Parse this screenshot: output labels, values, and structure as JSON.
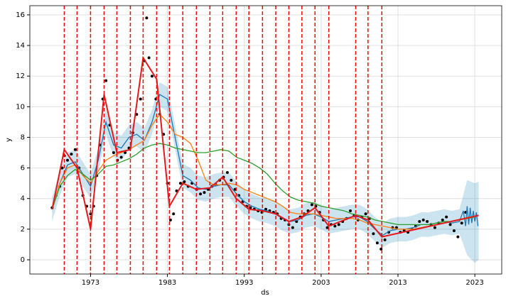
{
  "chart_data": {
    "type": "line",
    "xlabel": "ds",
    "ylabel": "y",
    "xlim": [
      1965.1,
      2026.5
    ],
    "ylim": [
      -0.93,
      16.6
    ],
    "xticks": [
      1973,
      1983,
      1993,
      2003,
      2013,
      2023
    ],
    "yticks": [
      0,
      2,
      4,
      6,
      8,
      10,
      12,
      14,
      16
    ],
    "grid": true,
    "band": {
      "color": "#0072b2",
      "x": [
        1968,
        1969,
        1970,
        1971,
        1972,
        1973,
        1974,
        1975,
        1976,
        1977,
        1978,
        1979,
        1980,
        1981,
        1982,
        1983,
        1984,
        1985,
        1986,
        1987,
        1988,
        1989,
        1990,
        1991,
        1992,
        1993,
        1994,
        1995,
        1996,
        1997,
        1998,
        1999,
        2000,
        2001,
        2002,
        2003,
        2004,
        2005,
        2006,
        2007,
        2008,
        2009,
        2010,
        2011,
        2012,
        2013,
        2014,
        2015,
        2016,
        2017,
        2018,
        2019,
        2020,
        2021,
        2022,
        2023,
        2023.5
      ],
      "upper": [
        4.1,
        5.8,
        7.0,
        7.2,
        6.4,
        5.6,
        7.3,
        9.8,
        8.3,
        8.1,
        8.8,
        9.0,
        8.6,
        9.8,
        11.6,
        11.3,
        8.8,
        6.3,
        6.0,
        5.5,
        5.4,
        5.6,
        5.7,
        5.7,
        5.1,
        4.6,
        4.3,
        4.1,
        4.0,
        3.8,
        3.5,
        3.3,
        3.4,
        3.7,
        3.8,
        3.6,
        3.3,
        3.4,
        3.5,
        3.6,
        3.6,
        3.3,
        2.8,
        2.4,
        2.7,
        2.8,
        2.8,
        2.9,
        3.1,
        3.1,
        3.2,
        3.3,
        3.2,
        3.3,
        5.2,
        5.0,
        5.1
      ],
      "lower": [
        2.5,
        4.2,
        5.4,
        5.6,
        4.8,
        4.0,
        5.7,
        8.2,
        6.7,
        6.5,
        7.2,
        7.4,
        7.0,
        8.2,
        10.0,
        9.7,
        7.2,
        4.7,
        4.4,
        3.9,
        3.8,
        4.0,
        4.1,
        4.1,
        3.5,
        3.0,
        2.7,
        2.5,
        2.4,
        2.2,
        1.9,
        1.7,
        1.8,
        2.1,
        2.2,
        2.0,
        1.7,
        1.8,
        1.9,
        2.0,
        2.0,
        1.7,
        1.2,
        0.8,
        1.1,
        1.2,
        1.2,
        1.3,
        1.5,
        1.5,
        1.6,
        1.7,
        1.6,
        1.7,
        0.3,
        -0.2,
        0.0
      ]
    },
    "points": {
      "color": "#000000",
      "x": [
        1968,
        1968.5,
        1969,
        1969.3,
        1969.6,
        1970,
        1970.5,
        1971,
        1971.5,
        1972,
        1972.5,
        1973,
        1973.4,
        1973.8,
        1974.2,
        1974.6,
        1975,
        1975.5,
        1976,
        1976.5,
        1977,
        1977.5,
        1978,
        1978.5,
        1979,
        1979.5,
        1980,
        1980.3,
        1980.6,
        1981,
        1981.5,
        1982,
        1982.5,
        1983,
        1983.4,
        1983.8,
        1984.2,
        1984.7,
        1985.2,
        1985.7,
        1986.2,
        1986.8,
        1987.3,
        1987.8,
        1988.3,
        1988.8,
        1989.3,
        1989.8,
        1990.3,
        1990.8,
        1991.3,
        1991.8,
        1992.3,
        1992.8,
        1993.3,
        1993.8,
        1994.3,
        1994.8,
        1995.3,
        1995.8,
        1996.3,
        1996.8,
        1997.3,
        1997.8,
        1998.3,
        1998.8,
        1999.3,
        1999.8,
        2000.3,
        2000.8,
        2001.3,
        2001.8,
        2002.3,
        2002.8,
        2003.3,
        2003.8,
        2004.3,
        2004.8,
        2005.3,
        2005.8,
        2006.3,
        2006.8,
        2007.3,
        2007.8,
        2008.3,
        2008.8,
        2009.3,
        2009.8,
        2010.3,
        2010.8,
        2011.3,
        2011.8,
        2012.3,
        2012.8,
        2013.3,
        2013.8,
        2014.3,
        2014.8,
        2015.3,
        2015.8,
        2016.3,
        2016.8,
        2017.3,
        2017.8,
        2018.3,
        2018.8,
        2019.3,
        2019.8,
        2020.3,
        2020.8,
        2021.3,
        2021.8
      ],
      "values": [
        3.4,
        4.2,
        4.8,
        6.0,
        6.8,
        6.5,
        6.9,
        7.2,
        6.0,
        4.2,
        3.5,
        3.0,
        3.5,
        5.5,
        7.5,
        10.5,
        11.7,
        8.8,
        7.0,
        6.5,
        6.7,
        7.0,
        7.3,
        8.3,
        9.5,
        10.5,
        13.0,
        15.8,
        13.2,
        12.0,
        10.5,
        9.5,
        8.2,
        5.0,
        2.6,
        3.0,
        4.5,
        5.0,
        5.1,
        4.8,
        5.0,
        4.6,
        4.3,
        4.4,
        4.6,
        4.8,
        4.9,
        5.2,
        5.4,
        5.7,
        5.2,
        4.6,
        4.2,
        3.8,
        3.5,
        3.4,
        3.3,
        3.2,
        3.1,
        3.3,
        3.2,
        3.1,
        3.0,
        2.7,
        2.6,
        2.3,
        2.1,
        2.5,
        2.8,
        3.0,
        3.2,
        3.6,
        3.5,
        3.1,
        2.6,
        2.1,
        2.3,
        2.2,
        2.3,
        2.5,
        2.7,
        3.2,
        2.9,
        2.6,
        2.8,
        3.0,
        2.7,
        1.7,
        1.1,
        0.7,
        1.3,
        1.8,
        2.1,
        2.1,
        1.8,
        1.9,
        1.8,
        2.0,
        2.2,
        2.5,
        2.6,
        2.5,
        2.3,
        2.1,
        2.4,
        2.6,
        2.8,
        2.3,
        1.9,
        1.5,
        2.4,
        3.1
      ]
    },
    "series": [
      {
        "color": "#1f77b4",
        "x": [
          1968,
          1969,
          1970,
          1971,
          1972,
          1973,
          1974,
          1975,
          1976,
          1977,
          1978,
          1979,
          1980,
          1981,
          1982,
          1983,
          1984,
          1985,
          1986,
          1987,
          1988,
          1989,
          1990,
          1991,
          1992,
          1993,
          1994,
          1995,
          1996,
          1997,
          1998,
          1999,
          2000,
          2001,
          2002,
          2003,
          2004,
          2005,
          2006,
          2007,
          2008,
          2009,
          2010,
          2011,
          2012,
          2013,
          2014,
          2015,
          2016,
          2017,
          2018,
          2019,
          2020,
          2021,
          2021.5,
          2021.8,
          2022,
          2022.2,
          2022.4,
          2022.6,
          2022.8,
          2023,
          2023.2,
          2023.4
        ],
        "values": [
          3.3,
          5.0,
          6.2,
          6.4,
          5.6,
          4.8,
          6.5,
          9.0,
          7.5,
          7.3,
          8.0,
          8.2,
          7.8,
          9.0,
          10.8,
          10.5,
          8.0,
          5.5,
          5.2,
          4.7,
          4.6,
          4.8,
          4.9,
          4.9,
          4.3,
          3.8,
          3.5,
          3.3,
          3.2,
          3.0,
          2.7,
          2.5,
          2.6,
          2.9,
          3.0,
          2.8,
          2.5,
          2.6,
          2.7,
          2.8,
          2.8,
          2.5,
          2.0,
          1.6,
          1.9,
          2.0,
          2.0,
          2.1,
          2.3,
          2.3,
          2.4,
          2.5,
          2.4,
          2.5,
          3.2,
          2.2,
          3.5,
          2.3,
          3.4,
          2.4,
          3.2,
          2.5,
          3.1,
          2.2
        ]
      },
      {
        "color": "#ff7f0e",
        "x": [
          1968,
          1969,
          1970,
          1971,
          1972,
          1973,
          1974,
          1975,
          1976,
          1977,
          1978,
          1979,
          1980,
          1981,
          1982,
          1983,
          1984,
          1985,
          1986,
          1987,
          1988,
          1989,
          1990,
          1991,
          1992,
          1993,
          1994,
          1995,
          1996,
          1997,
          1998,
          1999,
          2000,
          2001,
          2002,
          2003,
          2004,
          2005,
          2006,
          2007,
          2008,
          2009,
          2010,
          2011,
          2012,
          2013,
          2014,
          2015,
          2016,
          2017,
          2018,
          2019,
          2020,
          2021,
          2022,
          2023
        ],
        "values": [
          3.3,
          5.0,
          6.0,
          6.2,
          5.5,
          5.0,
          5.8,
          6.5,
          6.8,
          7.0,
          7.2,
          7.5,
          7.8,
          8.8,
          9.5,
          9.0,
          8.2,
          8.0,
          7.6,
          6.5,
          5.2,
          4.9,
          4.9,
          5.0,
          4.9,
          4.6,
          4.4,
          4.2,
          4.0,
          3.8,
          3.5,
          3.1,
          3.0,
          3.0,
          3.0,
          2.9,
          2.8,
          2.7,
          2.7,
          2.7,
          2.6,
          2.4,
          2.3,
          2.2,
          2.1,
          2.0,
          2.0,
          2.0,
          2.1,
          2.2,
          2.3,
          2.4,
          2.5,
          2.6,
          2.7,
          2.8
        ]
      },
      {
        "color": "#2ca02c",
        "x": [
          1968,
          1969,
          1970,
          1971,
          1972,
          1973,
          1974,
          1975,
          1976,
          1977,
          1978,
          1979,
          1980,
          1981,
          1982,
          1983,
          1984,
          1985,
          1986,
          1987,
          1988,
          1989,
          1990,
          1991,
          1992,
          1993,
          1994,
          1995,
          1996,
          1997,
          1998,
          1999,
          2000,
          2001,
          2002,
          2003,
          2004,
          2005,
          2006,
          2007,
          2008,
          2009,
          2010,
          2011,
          2012,
          2013,
          2014,
          2015,
          2016,
          2017,
          2018,
          2019,
          2020,
          2021,
          2022,
          2023
        ],
        "values": [
          3.3,
          4.8,
          5.5,
          5.9,
          5.6,
          5.2,
          5.6,
          6.1,
          6.2,
          6.4,
          6.6,
          6.9,
          7.3,
          7.5,
          7.6,
          7.5,
          7.3,
          7.2,
          7.1,
          7.0,
          7.0,
          7.1,
          7.2,
          7.1,
          6.7,
          6.5,
          6.3,
          6.0,
          5.6,
          5.0,
          4.5,
          4.1,
          3.9,
          3.8,
          3.7,
          3.5,
          3.4,
          3.3,
          3.2,
          3.0,
          2.9,
          2.8,
          2.6,
          2.5,
          2.4,
          2.3,
          2.3,
          2.3,
          2.3,
          2.3,
          2.4,
          2.5,
          2.5,
          2.6,
          2.7,
          2.8
        ]
      },
      {
        "color": "#e31a1c",
        "x": [
          1968,
          1969.58,
          1971.24,
          1973,
          1974.76,
          1976.42,
          1978.18,
          1979.84,
          1981.6,
          1983.26,
          1985,
          1986.77,
          1988.53,
          1990.19,
          1991.95,
          1993.6,
          1995.37,
          1997.1,
          1998.8,
          2000.5,
          2002.2,
          2004.0,
          2007.5,
          2009.1,
          2010.9,
          2023.5
        ],
        "values": [
          3.3,
          7.2,
          6.0,
          2.0,
          10.8,
          7.0,
          7.2,
          13.2,
          11.8,
          3.5,
          5.0,
          4.6,
          4.7,
          5.4,
          4.0,
          3.3,
          3.2,
          3.0,
          2.5,
          2.8,
          3.4,
          2.2,
          2.9,
          2.6,
          1.5,
          2.9
        ]
      }
    ],
    "changepoints": {
      "color": "#ff0000",
      "x": [
        1969.58,
        1971.24,
        1973,
        1974.76,
        1976.42,
        1978.18,
        1979.84,
        1981.6,
        1983.26,
        1985,
        1986.77,
        1988.53,
        1990.19,
        1991.95,
        1993.6,
        1995.37,
        1997.1,
        1998.8,
        2000.5,
        2002.2,
        2004.0,
        2007.5,
        2009.1,
        2010.9
      ]
    }
  }
}
